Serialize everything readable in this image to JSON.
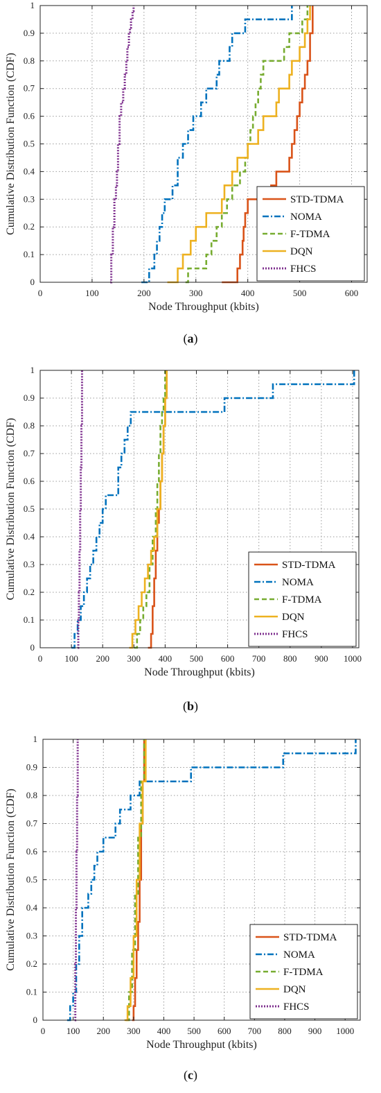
{
  "colors": {
    "STD-TDMA": "#D95319",
    "NOMA": "#0072BD",
    "F-TDMA": "#77AC30",
    "DQN": "#EDB120",
    "FHCS": "#7E2F8E"
  },
  "chart_data": [
    {
      "type": "line",
      "caption": "a",
      "xlabel": "Node Throughput (kbits)",
      "ylabel": "Cumulative Distribution Function (CDF)",
      "xlim": [
        0,
        630
      ],
      "ylim": [
        0,
        1
      ],
      "xticks": [
        0,
        100,
        200,
        300,
        400,
        500,
        600
      ],
      "yticks": [
        0,
        0.1,
        0.2,
        0.3,
        0.4,
        0.5,
        0.6,
        0.7,
        0.8,
        0.9,
        1
      ],
      "grid": true,
      "legend": {
        "placement": "bottom-right",
        "entries": [
          "STD-TDMA",
          "NOMA",
          "F-TDMA",
          "DQN",
          "FHCS"
        ]
      },
      "series": [
        {
          "name": "STD-TDMA",
          "x": [
            350,
            380,
            385,
            390,
            392,
            395,
            400,
            445,
            455,
            480,
            485,
            490,
            495,
            500,
            505,
            510,
            515,
            520,
            525
          ],
          "y": [
            0,
            0.05,
            0.1,
            0.15,
            0.2,
            0.25,
            0.3,
            0.35,
            0.4,
            0.45,
            0.5,
            0.55,
            0.6,
            0.65,
            0.7,
            0.75,
            0.8,
            0.9,
            1
          ]
        },
        {
          "name": "NOMA",
          "x": [
            195,
            210,
            220,
            225,
            230,
            235,
            240,
            255,
            265,
            275,
            285,
            295,
            310,
            320,
            340,
            345,
            365,
            370,
            395,
            485
          ],
          "y": [
            0,
            0.05,
            0.1,
            0.15,
            0.2,
            0.25,
            0.3,
            0.35,
            0.45,
            0.5,
            0.55,
            0.6,
            0.65,
            0.7,
            0.75,
            0.8,
            0.85,
            0.9,
            0.95,
            1
          ]
        },
        {
          "name": "F-TDMA",
          "x": [
            280,
            285,
            320,
            330,
            340,
            350,
            360,
            370,
            385,
            395,
            400,
            405,
            410,
            415,
            420,
            425,
            430,
            440,
            470,
            480,
            505,
            515
          ],
          "y": [
            0,
            0.05,
            0.1,
            0.15,
            0.2,
            0.25,
            0.3,
            0.35,
            0.4,
            0.45,
            0.5,
            0.55,
            0.6,
            0.65,
            0.7,
            0.75,
            0.8,
            0.8,
            0.85,
            0.9,
            0.95,
            1
          ]
        },
        {
          "name": "DQN",
          "x": [
            245,
            265,
            275,
            290,
            300,
            320,
            350,
            355,
            370,
            380,
            400,
            420,
            430,
            455,
            460,
            480,
            485,
            500,
            510,
            515,
            520
          ],
          "y": [
            0,
            0.05,
            0.1,
            0.15,
            0.2,
            0.25,
            0.3,
            0.35,
            0.4,
            0.45,
            0.5,
            0.55,
            0.6,
            0.65,
            0.7,
            0.75,
            0.8,
            0.85,
            0.9,
            0.95,
            1
          ]
        },
        {
          "name": "FHCS",
          "x": [
            135,
            137,
            140,
            143,
            146,
            148,
            150,
            153,
            156,
            160,
            163,
            166,
            168,
            171,
            173,
            175,
            178,
            180
          ],
          "y": [
            0,
            0.1,
            0.2,
            0.3,
            0.35,
            0.4,
            0.5,
            0.6,
            0.65,
            0.7,
            0.75,
            0.8,
            0.85,
            0.9,
            0.92,
            0.95,
            0.98,
            1
          ]
        }
      ]
    },
    {
      "type": "line",
      "caption": "b",
      "xlabel": "Node Throughput (kbits)",
      "ylabel": "Cumulative Distribution Function (CDF)",
      "xlim": [
        0,
        1020
      ],
      "ylim": [
        0,
        1
      ],
      "xticks": [
        0,
        100,
        200,
        300,
        400,
        500,
        600,
        700,
        800,
        900,
        1000
      ],
      "yticks": [
        0,
        0.1,
        0.2,
        0.3,
        0.4,
        0.5,
        0.6,
        0.7,
        0.8,
        0.9,
        1
      ],
      "grid": true,
      "legend": {
        "placement": "bottom-right",
        "entries": [
          "STD-TDMA",
          "NOMA",
          "F-TDMA",
          "DQN",
          "FHCS"
        ]
      },
      "series": [
        {
          "name": "STD-TDMA",
          "x": [
            345,
            355,
            360,
            365,
            370,
            375,
            380,
            385,
            390,
            395,
            400,
            405
          ],
          "y": [
            0,
            0.05,
            0.15,
            0.25,
            0.35,
            0.45,
            0.5,
            0.6,
            0.7,
            0.8,
            0.9,
            1
          ]
        },
        {
          "name": "NOMA",
          "x": [
            100,
            110,
            120,
            130,
            140,
            150,
            160,
            170,
            180,
            190,
            200,
            210,
            250,
            260,
            270,
            280,
            290,
            300,
            320,
            590,
            745,
            1005
          ],
          "y": [
            0,
            0.05,
            0.1,
            0.15,
            0.2,
            0.25,
            0.3,
            0.35,
            0.4,
            0.45,
            0.5,
            0.55,
            0.65,
            0.7,
            0.75,
            0.8,
            0.85,
            0.85,
            0.85,
            0.9,
            0.95,
            1
          ]
        },
        {
          "name": "F-TDMA",
          "x": [
            300,
            310,
            320,
            330,
            340,
            350,
            360,
            370,
            375,
            380,
            385,
            390,
            395,
            400
          ],
          "y": [
            0,
            0.05,
            0.1,
            0.15,
            0.2,
            0.3,
            0.4,
            0.5,
            0.6,
            0.7,
            0.8,
            0.85,
            0.9,
            1
          ]
        },
        {
          "name": "DQN",
          "x": [
            285,
            295,
            305,
            315,
            325,
            335,
            345,
            355,
            365,
            375,
            385,
            390,
            395,
            400,
            405
          ],
          "y": [
            0,
            0.05,
            0.1,
            0.15,
            0.2,
            0.25,
            0.3,
            0.35,
            0.4,
            0.5,
            0.6,
            0.7,
            0.8,
            0.9,
            1
          ]
        },
        {
          "name": "FHCS",
          "x": [
            120,
            122,
            124,
            126,
            128,
            130,
            132,
            134
          ],
          "y": [
            0,
            0.1,
            0.2,
            0.35,
            0.5,
            0.65,
            0.8,
            1
          ]
        }
      ]
    },
    {
      "type": "line",
      "caption": "c",
      "xlabel": "Node Throughput (kbits)",
      "ylabel": "Cumulative Distribution Function (CDF)",
      "xlim": [
        0,
        1050
      ],
      "ylim": [
        0,
        1
      ],
      "xticks": [
        0,
        100,
        200,
        300,
        400,
        500,
        600,
        700,
        800,
        900,
        1000
      ],
      "yticks": [
        0,
        0.1,
        0.2,
        0.3,
        0.4,
        0.5,
        0.6,
        0.7,
        0.8,
        0.9,
        1
      ],
      "grid": true,
      "legend": {
        "placement": "bottom-right",
        "entries": [
          "STD-TDMA",
          "NOMA",
          "F-TDMA",
          "DQN",
          "FHCS"
        ]
      },
      "series": [
        {
          "name": "STD-TDMA",
          "x": [
            295,
            300,
            305,
            310,
            315,
            320,
            325,
            330,
            335
          ],
          "y": [
            0,
            0.05,
            0.15,
            0.25,
            0.35,
            0.5,
            0.7,
            0.85,
            1
          ]
        },
        {
          "name": "NOMA",
          "x": [
            80,
            90,
            100,
            110,
            120,
            130,
            150,
            160,
            170,
            180,
            200,
            240,
            255,
            270,
            290,
            300,
            320,
            345,
            490,
            795,
            1035
          ],
          "y": [
            0,
            0.05,
            0.1,
            0.2,
            0.3,
            0.4,
            0.45,
            0.5,
            0.55,
            0.6,
            0.65,
            0.7,
            0.75,
            0.75,
            0.8,
            0.8,
            0.85,
            0.85,
            0.9,
            0.95,
            1
          ]
        },
        {
          "name": "F-TDMA",
          "x": [
            275,
            285,
            295,
            305,
            315,
            325,
            335
          ],
          "y": [
            0,
            0.1,
            0.25,
            0.45,
            0.65,
            0.85,
            1
          ]
        },
        {
          "name": "DQN",
          "x": [
            270,
            280,
            290,
            300,
            310,
            320,
            330,
            340
          ],
          "y": [
            0,
            0.05,
            0.15,
            0.3,
            0.5,
            0.7,
            0.85,
            1
          ]
        },
        {
          "name": "FHCS",
          "x": [
            105,
            107,
            109,
            111,
            113,
            115
          ],
          "y": [
            0,
            0.2,
            0.4,
            0.6,
            0.8,
            1
          ]
        }
      ]
    }
  ]
}
